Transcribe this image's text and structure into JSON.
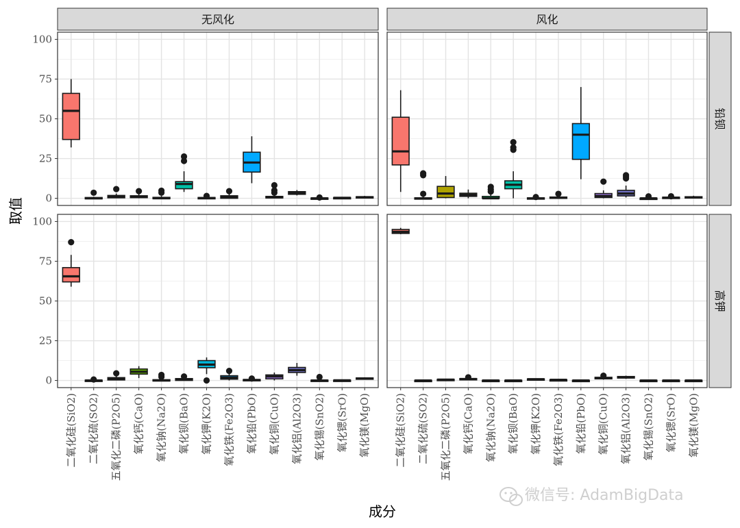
{
  "chart_data": {
    "type": "boxplot",
    "xlabel": "成分",
    "ylabel": "取值",
    "ylim": [
      0,
      100
    ],
    "yticks": [
      0,
      25,
      50,
      75,
      100
    ],
    "grid": true,
    "facets": {
      "columns": [
        "无风化",
        "风化"
      ],
      "rows": [
        "铅钡",
        "高钾"
      ]
    },
    "categories": [
      "二氧化硅(SiO2)",
      "二氧化硫(SO2)",
      "五氧化二磷(P2O5)",
      "氧化钙(CaO)",
      "氧化钠(Na2O)",
      "氧化钡(BaO)",
      "氧化钾(K2O)",
      "氧化铁(Fe2O3)",
      "氧化铅(PbO)",
      "氧化铜(CuO)",
      "氧化铝(Al2O3)",
      "氧化锡(SnO2)",
      "氧化锶(SrO)",
      "氧化镁(MgO)"
    ],
    "colors": [
      "#F8766D",
      "#DB8E00",
      "#AEA200",
      "#64B200",
      "#00BD5C",
      "#00C1A7",
      "#00BADE",
      "#00A6FF",
      "#00A9FF",
      "#B385FF",
      "#6F6FC2",
      "#EF67EB",
      "#FF63B6",
      "#E76BF3"
    ],
    "panels": [
      {
        "row": "铅钡",
        "col": "无风化",
        "boxes": [
          {
            "category": "二氧化硅(SiO2)",
            "color": "#F8766D",
            "min": 32,
            "q1": 37,
            "median": 55,
            "q3": 66,
            "max": 75,
            "outliers": []
          },
          {
            "category": "二氧化硫(SO2)",
            "color": "#DB8E00",
            "min": 0,
            "q1": 0,
            "median": 0,
            "q3": 0.5,
            "max": 1,
            "outliers": [
              3.5
            ]
          },
          {
            "category": "五氧化二磷(P2O5)",
            "color": "#AEA200",
            "min": 0,
            "q1": 0.3,
            "median": 0.9,
            "q3": 1.8,
            "max": 3,
            "outliers": [
              5.8
            ]
          },
          {
            "category": "氧化钙(CaO)",
            "color": "#64B200",
            "min": 0,
            "q1": 0.4,
            "median": 1,
            "q3": 1.6,
            "max": 3,
            "outliers": [
              4.5
            ]
          },
          {
            "category": "氧化钠(Na2O)",
            "color": "#00BD5C",
            "min": 0,
            "q1": 0,
            "median": 0,
            "q3": 0.6,
            "max": 1.5,
            "outliers": [
              3.5,
              4.8
            ]
          },
          {
            "category": "氧化钡(BaO)",
            "color": "#00C1A7",
            "min": 4,
            "q1": 6,
            "median": 9,
            "q3": 10.5,
            "max": 17,
            "outliers": [
              23.5,
              26.3
            ]
          },
          {
            "category": "氧化钾(K2O)",
            "color": "#00BADE",
            "min": 0,
            "q1": 0,
            "median": 0.2,
            "q3": 0.5,
            "max": 1,
            "outliers": [
              1.5
            ]
          },
          {
            "category": "氧化铁(Fe2O3)",
            "color": "#00A6FF",
            "min": 0,
            "q1": 0,
            "median": 0.6,
            "q3": 1.6,
            "max": 3,
            "outliers": [
              4.5
            ]
          },
          {
            "category": "氧化铅(PbO)",
            "color": "#00A9FF",
            "min": 9.5,
            "q1": 16.5,
            "median": 22.5,
            "q3": 29,
            "max": 39,
            "outliers": []
          },
          {
            "category": "氧化铜(CuO)",
            "color": "#B385FF",
            "min": 0,
            "q1": 0.2,
            "median": 0.6,
            "q3": 1.2,
            "max": 2.5,
            "outliers": [
              3.5,
              5,
              8.2
            ]
          },
          {
            "category": "氧化铝(Al2O3)",
            "color": "#6F6FC2",
            "min": 1.8,
            "q1": 2.5,
            "median": 3.5,
            "q3": 4.2,
            "max": 5.2,
            "outliers": []
          },
          {
            "category": "氧化锡(SnO2)",
            "color": "#EF67EB",
            "min": 0,
            "q1": 0,
            "median": 0,
            "q3": 0.2,
            "max": 0.5,
            "outliers": [
              0.5
            ]
          },
          {
            "category": "氧化锶(SrO)",
            "color": "#FF63B6",
            "min": 0,
            "q1": 0.1,
            "median": 0.3,
            "q3": 0.5,
            "max": 0.8,
            "outliers": []
          },
          {
            "category": "氧化镁(MgO)",
            "color": "#E76BF3",
            "min": 0,
            "q1": 0.3,
            "median": 0.7,
            "q3": 1,
            "max": 1.5,
            "outliers": []
          }
        ]
      },
      {
        "row": "铅钡",
        "col": "风化",
        "boxes": [
          {
            "category": "二氧化硅(SiO2)",
            "color": "#F8766D",
            "min": 4,
            "q1": 21,
            "median": 29.5,
            "q3": 51,
            "max": 68,
            "outliers": []
          },
          {
            "category": "二氧化硫(SO2)",
            "color": "#DB8E00",
            "min": 0,
            "q1": 0,
            "median": 0,
            "q3": 0.3,
            "max": 1,
            "outliers": [
              2.8,
              14.5,
              15.7
            ]
          },
          {
            "category": "五氧化二磷(P2O5)",
            "color": "#AEA200",
            "min": 0,
            "q1": 0.5,
            "median": 3,
            "q3": 7.5,
            "max": 14,
            "outliers": []
          },
          {
            "category": "氧化钙(CaO)",
            "color": "#64B200",
            "min": 0,
            "q1": 1.2,
            "median": 2.2,
            "q3": 3.2,
            "max": 5.5,
            "outliers": []
          },
          {
            "category": "氧化钠(Na2O)",
            "color": "#00BD5C",
            "min": 0,
            "q1": 0,
            "median": 0,
            "q3": 1.2,
            "max": 2.8,
            "outliers": [
              4.2,
              5.5,
              7.2
            ]
          },
          {
            "category": "氧化钡(BaO)",
            "color": "#00C1A7",
            "min": 0,
            "q1": 6,
            "median": 8.5,
            "q3": 11,
            "max": 17,
            "outliers": [
              30.5,
              32,
              35.3
            ]
          },
          {
            "category": "氧化钾(K2O)",
            "color": "#00BADE",
            "min": 0,
            "q1": 0,
            "median": 0,
            "q3": 0.3,
            "max": 0.7,
            "outliers": [
              0.8
            ]
          },
          {
            "category": "氧化铁(Fe2O3)",
            "color": "#00A6FF",
            "min": 0,
            "q1": 0,
            "median": 0.3,
            "q3": 0.8,
            "max": 1.5,
            "outliers": [
              2.8
            ]
          },
          {
            "category": "氧化铅(PbO)",
            "color": "#00A9FF",
            "min": 12,
            "q1": 24.5,
            "median": 40,
            "q3": 47,
            "max": 70,
            "outliers": []
          },
          {
            "category": "氧化铜(CuO)",
            "color": "#B385FF",
            "min": 0,
            "q1": 0.5,
            "median": 1.5,
            "q3": 3,
            "max": 5,
            "outliers": [
              10.5
            ]
          },
          {
            "category": "氧化铝(Al2O3)",
            "color": "#6F6FC2",
            "min": 0.5,
            "q1": 1.5,
            "median": 3,
            "q3": 5,
            "max": 8,
            "outliers": [
              12.5,
              13.5,
              14.5
            ]
          },
          {
            "category": "氧化锡(SnO2)",
            "color": "#EF67EB",
            "min": 0,
            "q1": 0,
            "median": 0,
            "q3": 0.1,
            "max": 0.5,
            "outliers": [
              1.2
            ]
          },
          {
            "category": "氧化锶(SrO)",
            "color": "#FF63B6",
            "min": 0,
            "q1": 0.2,
            "median": 0.4,
            "q3": 0.7,
            "max": 1.2,
            "outliers": [
              1.3
            ]
          },
          {
            "category": "氧化镁(MgO)",
            "color": "#E76BF3",
            "min": 0,
            "q1": 0.3,
            "median": 0.6,
            "q3": 1,
            "max": 1.6,
            "outliers": []
          }
        ]
      },
      {
        "row": "高钾",
        "col": "无风化",
        "boxes": [
          {
            "category": "二氧化硅(SiO2)",
            "color": "#F8766D",
            "min": 59,
            "q1": 62,
            "median": 65.5,
            "q3": 71,
            "max": 79,
            "outliers": [
              87
            ]
          },
          {
            "category": "二氧化硫(SO2)",
            "color": "#DB8E00",
            "min": 0,
            "q1": 0,
            "median": 0,
            "q3": 0.2,
            "max": 0.5,
            "outliers": [
              0.6
            ]
          },
          {
            "category": "五氧化二磷(P2O5)",
            "color": "#AEA200",
            "min": 0,
            "q1": 0.3,
            "median": 1,
            "q3": 1.8,
            "max": 3,
            "outliers": [
              4.5
            ]
          },
          {
            "category": "氧化钙(CaO)",
            "color": "#64B200",
            "min": 1.5,
            "q1": 4,
            "median": 5.5,
            "q3": 7.2,
            "max": 9,
            "outliers": []
          },
          {
            "category": "氧化钠(Na2O)",
            "color": "#00BD5C",
            "min": 0,
            "q1": 0,
            "median": 0,
            "q3": 0.5,
            "max": 1.5,
            "outliers": [
              2.3,
              3.5
            ]
          },
          {
            "category": "氧化钡(BaO)",
            "color": "#00C1A7",
            "min": 0,
            "q1": 0,
            "median": 0.5,
            "q3": 1.2,
            "max": 2,
            "outliers": [
              2.5
            ]
          },
          {
            "category": "氧化钾(K2O)",
            "color": "#00BADE",
            "min": 4,
            "q1": 8,
            "median": 10,
            "q3": 12.5,
            "max": 14.5,
            "outliers": [
              0
            ]
          },
          {
            "category": "氧化铁(Fe2O3)",
            "color": "#00A6FF",
            "min": 0,
            "q1": 0.8,
            "median": 1.8,
            "q3": 3,
            "max": 4.5,
            "outliers": [
              6
            ]
          },
          {
            "category": "氧化铅(PbO)",
            "color": "#00A9FF",
            "min": 0,
            "q1": 0,
            "median": 0.3,
            "q3": 0.6,
            "max": 1,
            "outliers": [
              1.2
            ]
          },
          {
            "category": "氧化铜(CuO)",
            "color": "#B385FF",
            "min": 0,
            "q1": 1,
            "median": 2.5,
            "q3": 3.5,
            "max": 5,
            "outliers": []
          },
          {
            "category": "氧化铝(Al2O3)",
            "color": "#6F6FC2",
            "min": 3,
            "q1": 5,
            "median": 6.5,
            "q3": 8.2,
            "max": 11,
            "outliers": []
          },
          {
            "category": "氧化锡(SnO2)",
            "color": "#EF67EB",
            "min": 0,
            "q1": 0,
            "median": 0,
            "q3": 0.2,
            "max": 0.5,
            "outliers": [
              2.2
            ]
          },
          {
            "category": "氧化锶(SrO)",
            "color": "#FF63B6",
            "min": 0,
            "q1": 0,
            "median": 0.1,
            "q3": 0.2,
            "max": 0.3,
            "outliers": []
          },
          {
            "category": "氧化镁(MgO)",
            "color": "#E76BF3",
            "min": 0.5,
            "q1": 1,
            "median": 1.3,
            "q3": 1.6,
            "max": 2,
            "outliers": []
          }
        ]
      },
      {
        "row": "高钾",
        "col": "风化",
        "boxes": [
          {
            "category": "二氧化硅(SiO2)",
            "color": "#F8766D",
            "min": 92,
            "q1": 92.5,
            "median": 93.5,
            "q3": 95,
            "max": 96,
            "outliers": []
          },
          {
            "category": "二氧化硫(SO2)",
            "color": "#DB8E00",
            "min": 0,
            "q1": 0,
            "median": 0,
            "q3": 0.1,
            "max": 0.2,
            "outliers": []
          },
          {
            "category": "五氧化二磷(P2O5)",
            "color": "#AEA200",
            "min": 0,
            "q1": 0.2,
            "median": 0.5,
            "q3": 0.7,
            "max": 1,
            "outliers": []
          },
          {
            "category": "氧化钙(CaO)",
            "color": "#64B200",
            "min": 0.2,
            "q1": 0.6,
            "median": 0.9,
            "q3": 1.2,
            "max": 1.6,
            "outliers": [
              2
            ]
          },
          {
            "category": "氧化钠(Na2O)",
            "color": "#00BD5C",
            "min": 0,
            "q1": 0,
            "median": 0,
            "q3": 0.1,
            "max": 0.2,
            "outliers": []
          },
          {
            "category": "氧化钡(BaO)",
            "color": "#00C1A7",
            "min": 0,
            "q1": 0,
            "median": 0,
            "q3": 0.1,
            "max": 0.2,
            "outliers": []
          },
          {
            "category": "氧化钾(K2O)",
            "color": "#00BADE",
            "min": 0.3,
            "q1": 0.6,
            "median": 0.8,
            "q3": 1,
            "max": 1.3,
            "outliers": []
          },
          {
            "category": "氧化铁(Fe2O3)",
            "color": "#00A6FF",
            "min": 0.1,
            "q1": 0.3,
            "median": 0.4,
            "q3": 0.5,
            "max": 0.7,
            "outliers": []
          },
          {
            "category": "氧化铅(PbO)",
            "color": "#00A9FF",
            "min": 0,
            "q1": 0,
            "median": 0,
            "q3": 0.1,
            "max": 0.2,
            "outliers": []
          },
          {
            "category": "氧化铜(CuO)",
            "color": "#B385FF",
            "min": 0.5,
            "q1": 1,
            "median": 1.5,
            "q3": 2,
            "max": 2.5,
            "outliers": [
              3
            ]
          },
          {
            "category": "氧化铝(Al2O3)",
            "color": "#6F6FC2",
            "min": 1,
            "q1": 1.5,
            "median": 2,
            "q3": 2.5,
            "max": 3,
            "outliers": []
          },
          {
            "category": "氧化锡(SnO2)",
            "color": "#EF67EB",
            "min": 0,
            "q1": 0,
            "median": 0,
            "q3": 0.1,
            "max": 0.2,
            "outliers": []
          },
          {
            "category": "氧化锶(SrO)",
            "color": "#FF63B6",
            "min": 0,
            "q1": 0,
            "median": 0,
            "q3": 0.1,
            "max": 0.2,
            "outliers": []
          },
          {
            "category": "氧化镁(MgO)",
            "color": "#E76BF3",
            "min": 0,
            "q1": 0,
            "median": 0,
            "q3": 0.1,
            "max": 0.2,
            "outliers": []
          }
        ]
      }
    ]
  },
  "watermark": {
    "text": "微信号: AdamBigData",
    "icon": "wechat-icon"
  }
}
